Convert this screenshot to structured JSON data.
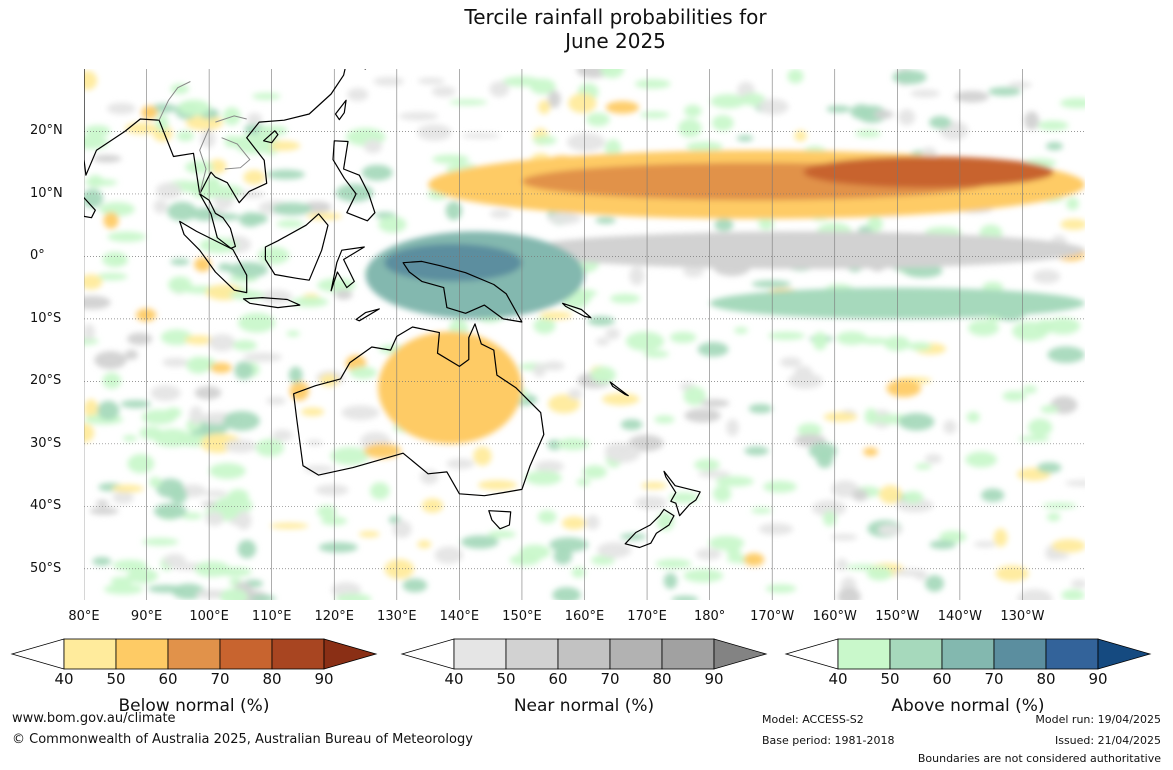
{
  "title": {
    "line1": "Tercile rainfall probabilities for",
    "line2": "June 2025"
  },
  "map": {
    "lat_labels": [
      "20°N",
      "10°N",
      "0°",
      "10°S",
      "20°S",
      "30°S",
      "40°S",
      "50°S"
    ],
    "lon_labels": [
      "80°E",
      "90°E",
      "100°E",
      "110°E",
      "120°E",
      "130°E",
      "140°E",
      "150°E",
      "160°E",
      "170°E",
      "180°",
      "170°W",
      "160°W",
      "150°W",
      "140°W",
      "130°W"
    ],
    "extent": {
      "lon_min": 80,
      "lon_max": 240,
      "lat_min": -55,
      "lat_max": 30
    },
    "ocean_color": "#ffffff",
    "coastline_color": "#000000",
    "border_color": "#888888",
    "gridline_color": "#777777",
    "gridline_style": "dotted",
    "regions": [
      {
        "category": "below",
        "level": 2,
        "lon": [
          135,
          240
        ],
        "lat": [
          6,
          17
        ],
        "note_lat_center": 11
      },
      {
        "category": "below",
        "level": 3,
        "lon": [
          150,
          225
        ],
        "lat": [
          9,
          15
        ]
      },
      {
        "category": "below",
        "level": 4,
        "lon": [
          195,
          235
        ],
        "lat": [
          11,
          16
        ]
      },
      {
        "category": "near",
        "level": 2,
        "lon": [
          150,
          240
        ],
        "lat": [
          -2,
          4
        ]
      },
      {
        "category": "above",
        "level": 3,
        "lon": [
          125,
          160
        ],
        "lat": [
          -10,
          4
        ]
      },
      {
        "category": "above",
        "level": 4,
        "lon": [
          128,
          150
        ],
        "lat": [
          -4,
          2
        ]
      },
      {
        "category": "below",
        "level": 2,
        "lon": [
          127,
          150
        ],
        "lat": [
          -30,
          -12
        ]
      },
      {
        "category": "above",
        "level": 2,
        "lon": [
          180,
          240
        ],
        "lat": [
          -10,
          -5
        ]
      }
    ]
  },
  "colorbars": [
    {
      "name": "below",
      "title": "Below normal (%)",
      "ticks": [
        "40",
        "50",
        "60",
        "70",
        "80",
        "90"
      ],
      "colors": [
        "#ffffff",
        "#ffeb9c",
        "#fecb65",
        "#e1924a",
        "#c8642f",
        "#a84521",
        "#8a2f15"
      ]
    },
    {
      "name": "near",
      "title": "Near normal (%)",
      "ticks": [
        "40",
        "50",
        "60",
        "70",
        "80",
        "90"
      ],
      "colors": [
        "#ffffff",
        "#e5e5e5",
        "#d2d2d2",
        "#c2c2c2",
        "#b2b2b2",
        "#a1a1a1",
        "#838383"
      ]
    },
    {
      "name": "above",
      "title": "Above normal (%)",
      "ticks": [
        "40",
        "50",
        "60",
        "70",
        "80",
        "90"
      ],
      "colors": [
        "#ffffff",
        "#c9f8cb",
        "#a6d9bc",
        "#83b8af",
        "#5b8e9f",
        "#33639a",
        "#154a80"
      ]
    }
  ],
  "footer": {
    "website": "www.bom.gov.au/climate",
    "copyright": "© Commonwealth of Australia 2025, Australian Bureau of Meteorology",
    "model": "Model: ACCESS-S2",
    "base_period": "Base period: 1981-2018",
    "model_run": "Model run: 19/04/2025",
    "issued": "Issued: 21/04/2025",
    "boundaries": "Boundaries are not considered authoritative"
  }
}
